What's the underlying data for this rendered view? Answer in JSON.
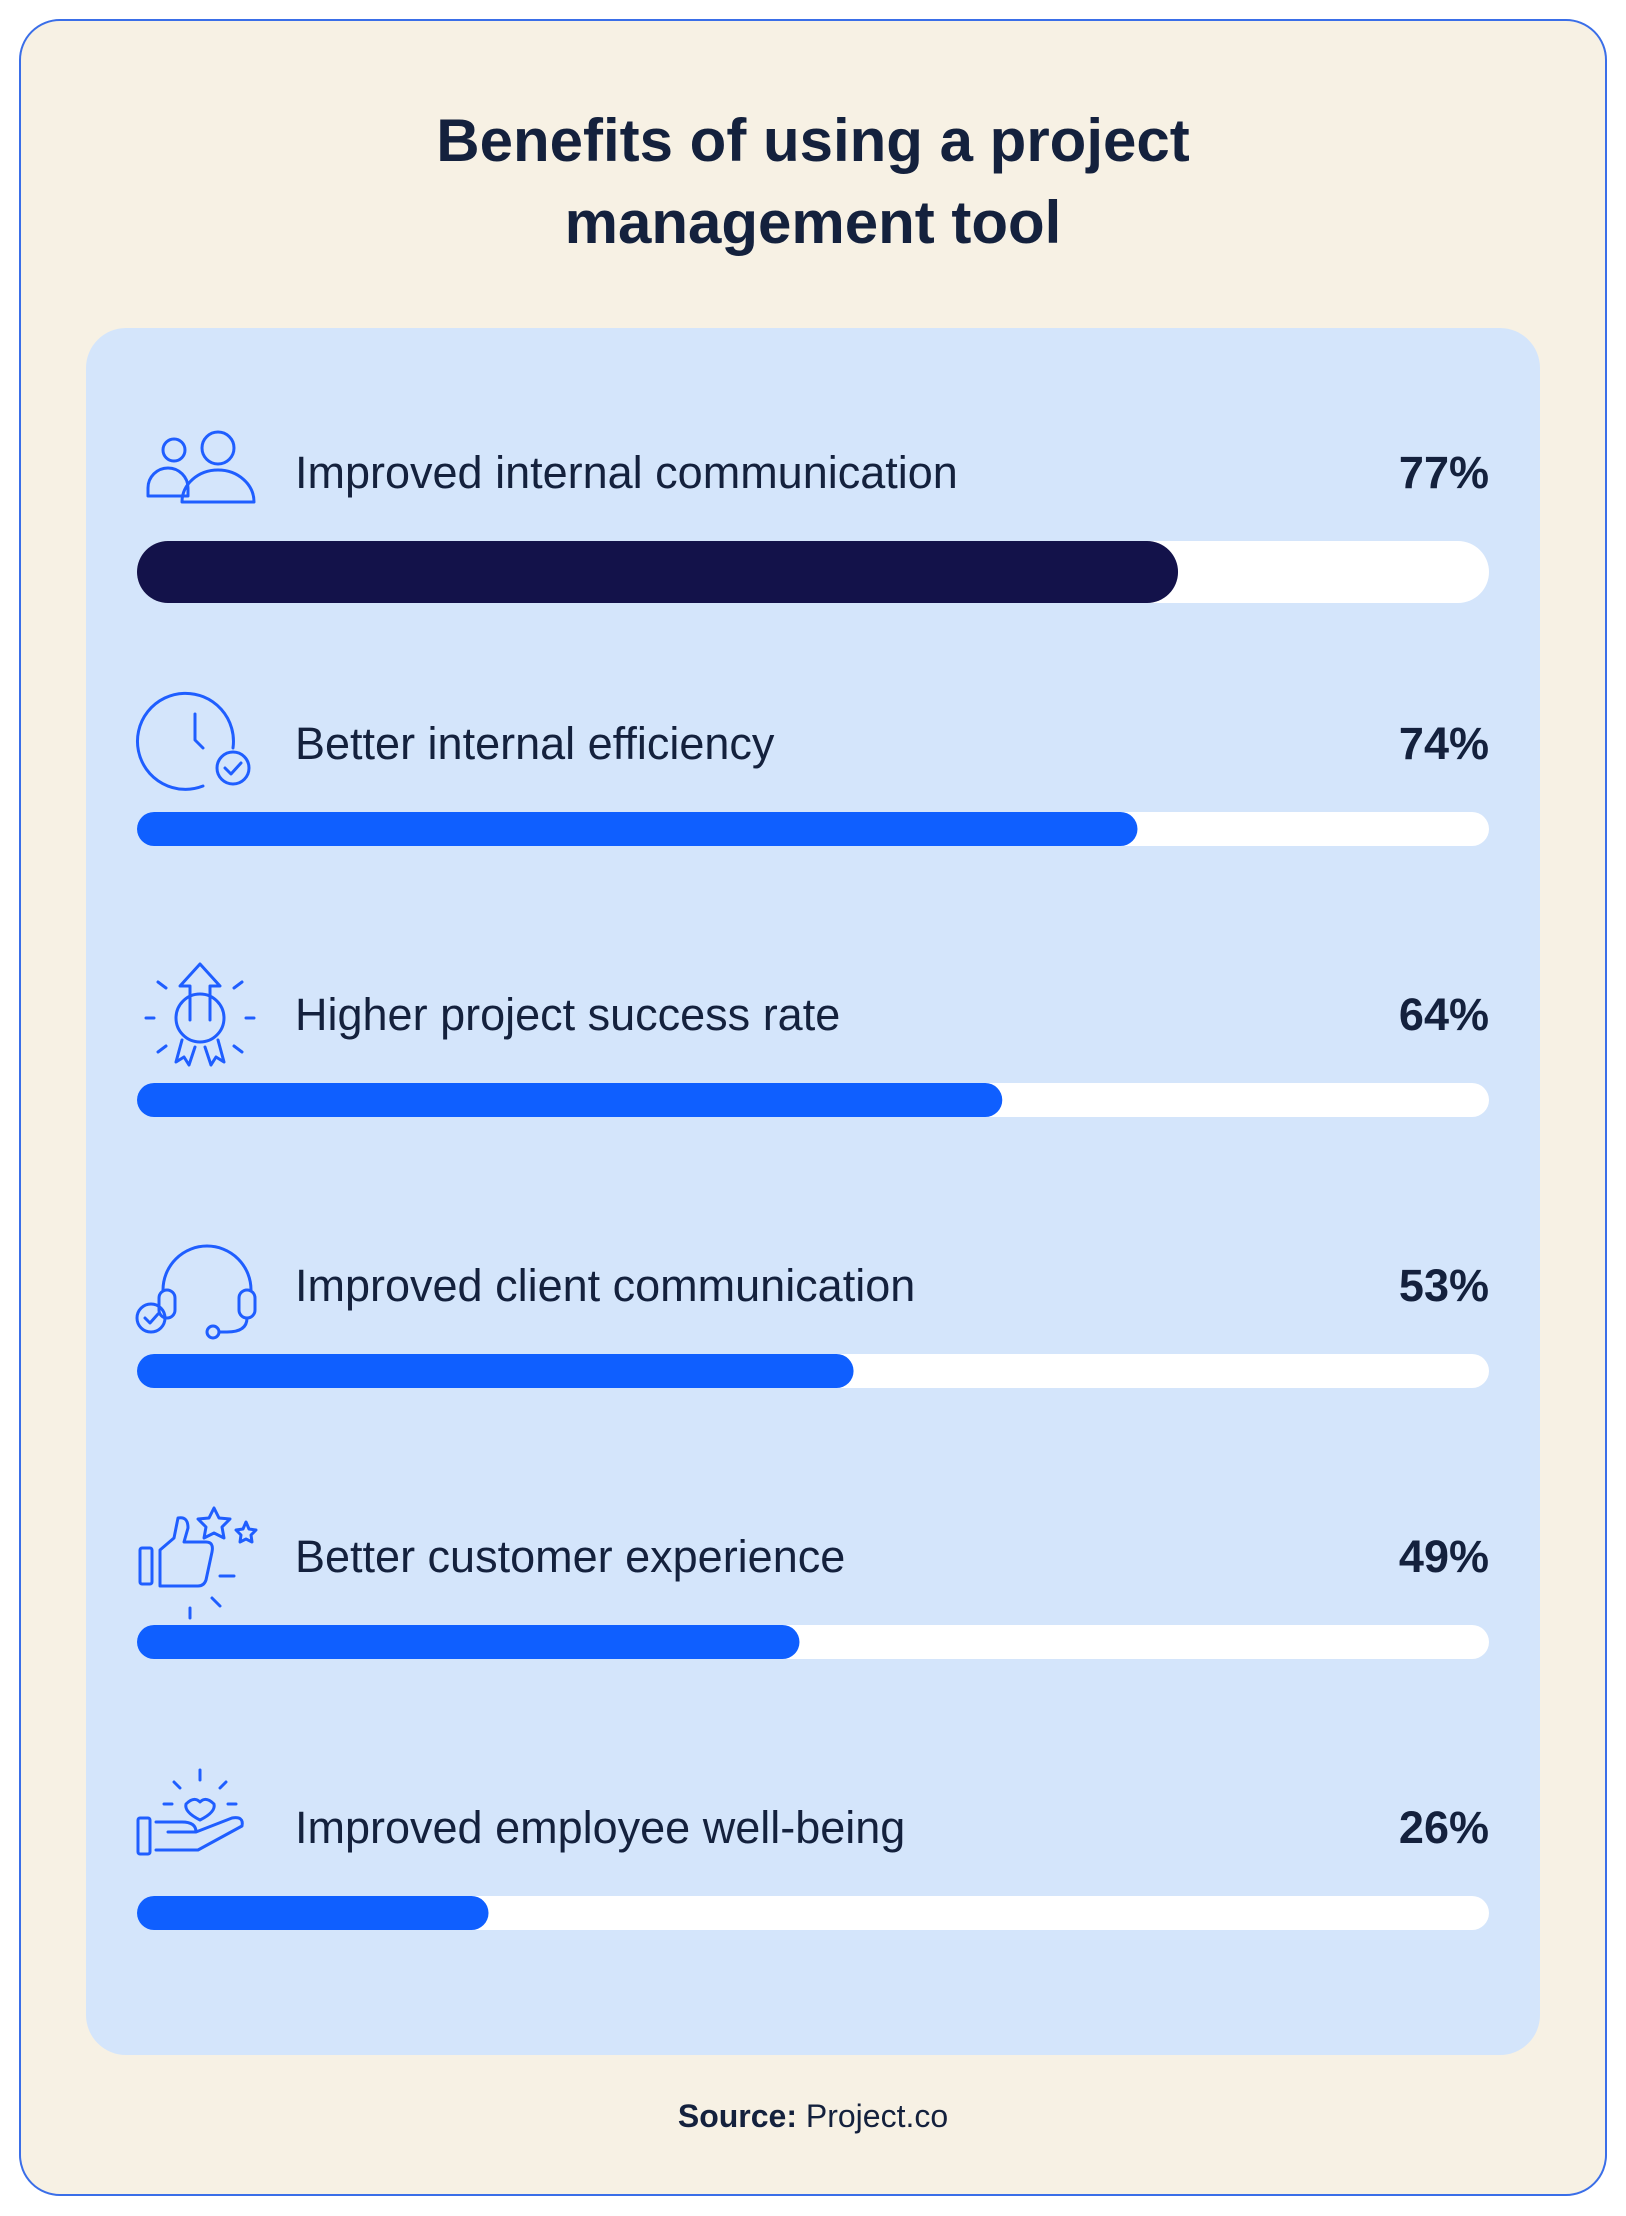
{
  "chart_data": {
    "type": "bar",
    "orientation": "horizontal",
    "title": "Benefits of using a project management tool",
    "categories": [
      "Improved internal communication",
      "Better internal efficiency",
      "Higher project success rate",
      "Improved client communication",
      "Better customer experience",
      "Improved employee well-being"
    ],
    "values": [
      77,
      74,
      64,
      53,
      49,
      26
    ],
    "value_labels": [
      "77%",
      "74%",
      "64%",
      "53%",
      "49%",
      "26%"
    ],
    "colors": [
      "#13124a",
      "#0f5fff",
      "#0f5fff",
      "#0f5fff",
      "#0f5fff",
      "#0f5fff"
    ],
    "xlim": [
      0,
      100
    ],
    "source_label": "Source:",
    "source": "Project.co"
  }
}
